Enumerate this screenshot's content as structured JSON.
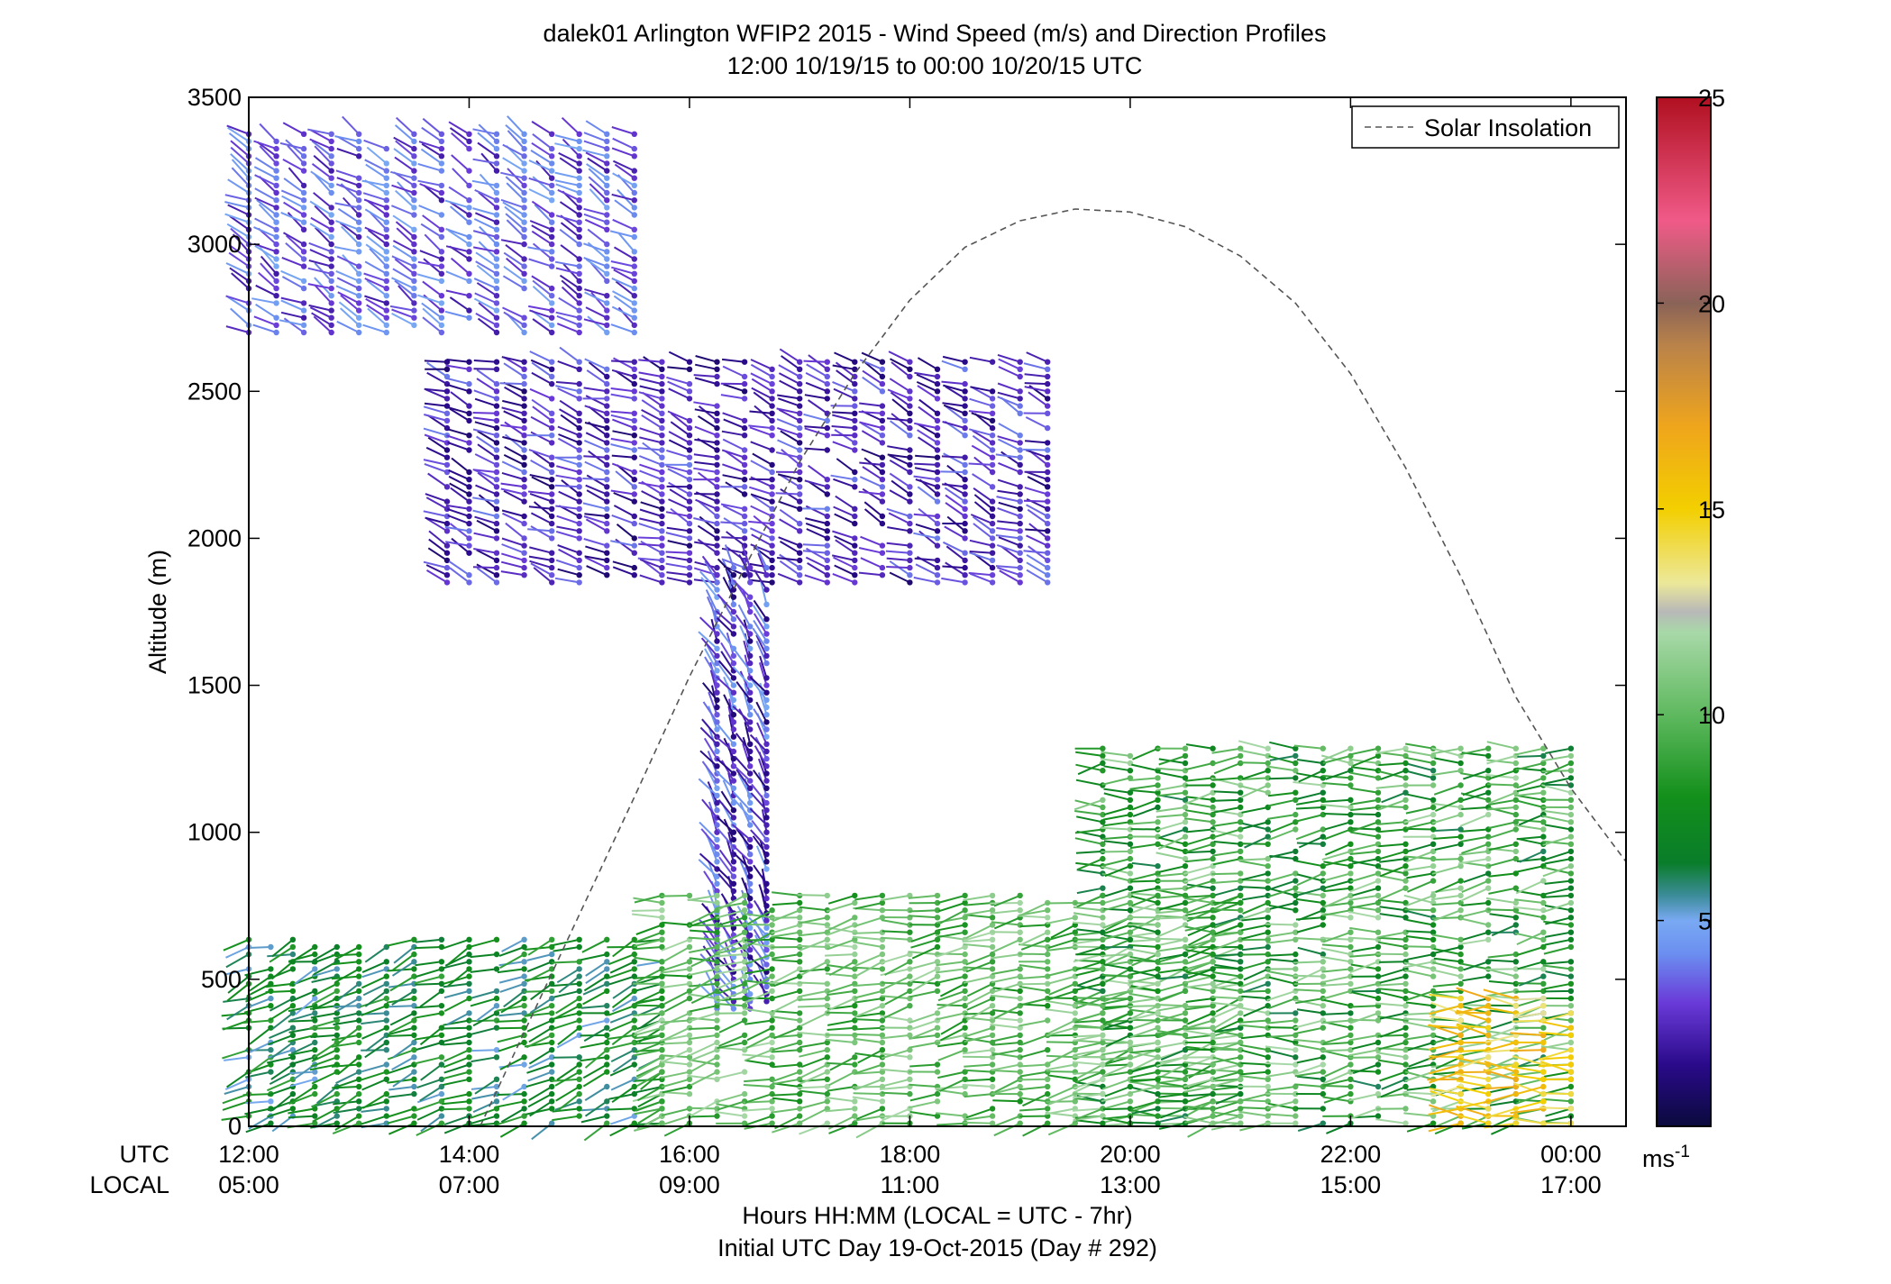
{
  "chart_data": {
    "type": "scatter",
    "title": "dalek01 Arlington WFIP2 2015 - Wind Speed (m/s) and Direction Profiles",
    "subtitle": "12:00 10/19/15 to 00:00 10/20/15  UTC",
    "ylabel": "Altitude (m)",
    "xlabel": "Hours HH:MM  (LOCAL = UTC - 7hr)",
    "xlabel2": "Initial UTC Day 19-Oct-2015 (Day # 292)",
    "row_label_utc": "UTC",
    "row_label_local": "LOCAL",
    "xlim": [
      12,
      24.5
    ],
    "ylim": [
      0,
      3500
    ],
    "yticks": [
      0,
      500,
      1000,
      1500,
      2000,
      2500,
      3000,
      3500
    ],
    "xticks": [
      12,
      14,
      16,
      18,
      20,
      22,
      24
    ],
    "xtick_labels_utc": [
      "12:00",
      "14:00",
      "16:00",
      "18:00",
      "20:00",
      "22:00",
      "00:00"
    ],
    "xtick_labels_local": [
      "05:00",
      "07:00",
      "09:00",
      "11:00",
      "13:00",
      "15:00",
      "17:00"
    ],
    "grid": false,
    "legend": {
      "entries": [
        "Solar Insolation"
      ],
      "placement": "top-right",
      "line_style": "dashed",
      "line_color": "#555555"
    },
    "solar_insolation": {
      "x": [
        14.1,
        14.5,
        15.0,
        15.5,
        16.0,
        16.5,
        17.0,
        17.5,
        18.0,
        18.5,
        19.0,
        19.5,
        20.0,
        20.5,
        21.0,
        21.5,
        22.0,
        22.5,
        23.0,
        23.5,
        24.0,
        24.5
      ],
      "y": [
        0,
        320,
        720,
        1120,
        1530,
        1900,
        2260,
        2560,
        2810,
        2990,
        3080,
        3120,
        3110,
        3060,
        2960,
        2800,
        2560,
        2240,
        1870,
        1460,
        1150,
        900
      ]
    },
    "colorbar": {
      "label": "ms",
      "label_superscript": "-1",
      "range": [
        0,
        25
      ],
      "ticks": [
        5,
        10,
        15,
        20,
        25
      ],
      "colormap": [
        {
          "v": 0,
          "c": "#0a0a3c"
        },
        {
          "v": 1.5,
          "c": "#2a0a8a"
        },
        {
          "v": 3,
          "c": "#6a3ad8"
        },
        {
          "v": 4.2,
          "c": "#6b8ff0"
        },
        {
          "v": 5,
          "c": "#79a9f3"
        },
        {
          "v": 5.6,
          "c": "#3c8c9a"
        },
        {
          "v": 6.4,
          "c": "#0a7d2a"
        },
        {
          "v": 8,
          "c": "#138f1b"
        },
        {
          "v": 10,
          "c": "#5fb95f"
        },
        {
          "v": 12,
          "c": "#a8d8a8"
        },
        {
          "v": 12.5,
          "c": "#b8b8b8"
        },
        {
          "v": 13.2,
          "c": "#ece89a"
        },
        {
          "v": 15,
          "c": "#f3cf00"
        },
        {
          "v": 17,
          "c": "#efa51c"
        },
        {
          "v": 19,
          "c": "#b9824a"
        },
        {
          "v": 20,
          "c": "#8a6358"
        },
        {
          "v": 22,
          "c": "#f05a88"
        },
        {
          "v": 25,
          "c": "#b01020"
        }
      ]
    },
    "vector_type": "wind barbs (speed colour-coded, stem points toward wind origin)",
    "series": [
      {
        "x": [
          12.0,
          12.2,
          12.4,
          12.6,
          12.8,
          13.0,
          13.25,
          13.5,
          13.75,
          14.0,
          14.25,
          14.5,
          14.75,
          15.0,
          15.25,
          15.5,
          15.75
        ],
        "y_range": [
          10,
          650
        ],
        "y_step": 25,
        "speed_range": [
          5,
          9
        ],
        "direction_deg": 250
      },
      {
        "x": [
          12.0,
          12.25,
          12.5,
          12.75,
          13.0,
          13.25,
          13.5,
          13.75,
          14.0,
          14.25,
          14.5,
          14.75,
          15.0,
          15.25,
          15.5
        ],
        "y_range": [
          2700,
          3380
        ],
        "y_step": 25,
        "speed_range": [
          2,
          5
        ],
        "direction_deg": 300
      },
      {
        "x": [
          13.8,
          14.0,
          14.25,
          14.5,
          14.75,
          15.0,
          15.25,
          15.5,
          15.75,
          16.0,
          16.25,
          16.5,
          16.75,
          17.0,
          17.25,
          17.5,
          17.75,
          18.0,
          18.25,
          18.5,
          18.75,
          19.0,
          19.25
        ],
        "y_range": [
          1850,
          2600
        ],
        "y_step": 25,
        "speed_range": [
          1,
          4
        ],
        "direction_deg": 290
      },
      {
        "x": [
          16.25,
          16.4,
          16.55,
          16.7
        ],
        "y_range": [
          400,
          1900
        ],
        "y_step": 25,
        "speed_range": [
          1,
          5
        ],
        "direction_deg": 330
      },
      {
        "x": [
          15.75,
          16.0,
          16.25,
          16.5,
          16.75,
          17.0,
          17.25,
          17.5,
          17.75,
          18.0,
          18.25,
          18.5,
          18.75,
          19.0,
          19.25,
          19.5,
          19.75,
          20.0,
          20.25,
          20.5,
          20.75,
          21.0
        ],
        "y_range": [
          10,
          800
        ],
        "y_step": 25,
        "speed_range": [
          8,
          12
        ],
        "direction_deg": 260
      },
      {
        "x": [
          19.75,
          20.0,
          20.25,
          20.5,
          20.75,
          21.0,
          21.25,
          21.5,
          21.75,
          22.0,
          22.25,
          22.5,
          22.75,
          23.0,
          23.25,
          23.5,
          23.75,
          24.0
        ],
        "y_range": [
          10,
          1300
        ],
        "y_step": 25,
        "speed_range": [
          6,
          12
        ],
        "direction_deg": 265
      },
      {
        "x": [
          23.0,
          23.25,
          23.5,
          23.75,
          24.0
        ],
        "y_range": [
          10,
          450
        ],
        "y_step": 25,
        "speed_range": [
          13,
          17
        ],
        "direction_deg": 270
      }
    ]
  }
}
